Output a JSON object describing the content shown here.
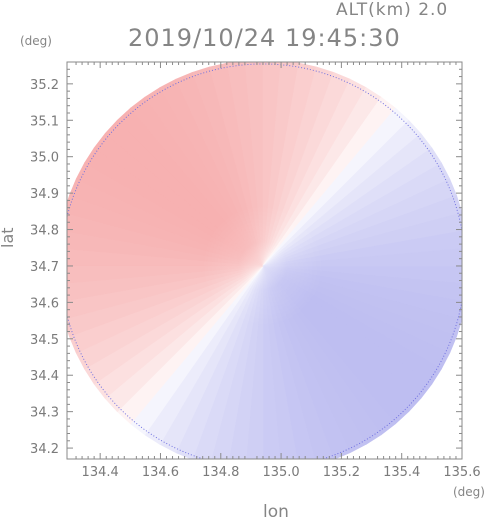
{
  "altitude_label": "ALT(km) 2.0",
  "timestamp": "2019/10/24 19:45:30",
  "y_unit": "(deg)",
  "x_unit": "(deg)",
  "chart_data": {
    "type": "heatmap",
    "xlabel": "lon",
    "ylabel": "lat",
    "xlim": [
      134.29,
      135.6
    ],
    "ylim": [
      34.17,
      35.26
    ],
    "x_ticks": [
      "134.4",
      "134.6",
      "134.8",
      "135.0",
      "135.2",
      "135.4",
      "135.6"
    ],
    "y_ticks": [
      "34.2",
      "34.3",
      "34.4",
      "34.5",
      "34.6",
      "34.7",
      "34.8",
      "34.9",
      "35.0",
      "35.1",
      "35.2"
    ],
    "radar_center": {
      "lon": 134.94,
      "lat": 34.7
    },
    "radar_range_deg": 0.67,
    "colors": {
      "positive": "#f5a3a3",
      "negative": "#a8a8ec",
      "zero": "#ffffff",
      "axis": "#7f7f7f"
    },
    "grid": false
  }
}
